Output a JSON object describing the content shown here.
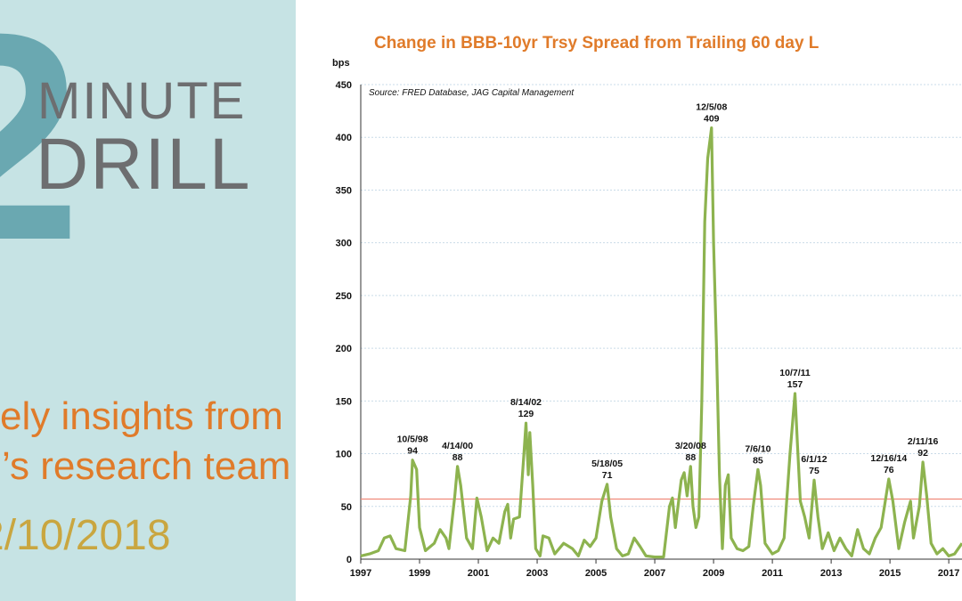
{
  "banner": {
    "digit": "2",
    "word1": "MINUTE",
    "word2": "DRILL",
    "line1": "ely insights from",
    "line2": "’s research team",
    "date": "2/10/2018"
  },
  "chart_data": {
    "type": "line",
    "title": "Change in BBB-10yr Trsy Spread from Trailing 60 day L",
    "y_label": "bps",
    "source": "Source: FRED Database, JAG Capital Management",
    "xlim": [
      1997,
      2017.45
    ],
    "xticks": [
      1997,
      1999,
      2001,
      2003,
      2005,
      2007,
      2009,
      2011,
      2013,
      2015,
      2017
    ],
    "ylim": [
      0,
      450
    ],
    "yticks": [
      0,
      50,
      100,
      150,
      200,
      250,
      300,
      350,
      400,
      450
    ],
    "grid": true,
    "reference_line": 57,
    "reference_color": "#f08a7a",
    "x": [
      1997.0,
      1997.3,
      1997.6,
      1997.8,
      1998.0,
      1998.2,
      1998.5,
      1998.7,
      1998.76,
      1998.9,
      1999.0,
      1999.2,
      1999.5,
      1999.7,
      1999.9,
      2000.0,
      2000.2,
      2000.29,
      2000.4,
      2000.6,
      2000.8,
      2000.95,
      2001.1,
      2001.3,
      2001.5,
      2001.7,
      2001.9,
      2002.0,
      2002.1,
      2002.2,
      2002.4,
      2002.55,
      2002.62,
      2002.7,
      2002.75,
      2002.85,
      2002.95,
      2003.1,
      2003.2,
      2003.4,
      2003.6,
      2003.9,
      2004.2,
      2004.4,
      2004.6,
      2004.8,
      2005.0,
      2005.2,
      2005.38,
      2005.5,
      2005.7,
      2005.9,
      2006.1,
      2006.3,
      2006.5,
      2006.7,
      2007.0,
      2007.3,
      2007.5,
      2007.6,
      2007.7,
      2007.9,
      2008.0,
      2008.1,
      2008.22,
      2008.3,
      2008.4,
      2008.5,
      2008.6,
      2008.7,
      2008.8,
      2008.93,
      2009.0,
      2009.1,
      2009.2,
      2009.3,
      2009.4,
      2009.5,
      2009.6,
      2009.8,
      2010.0,
      2010.2,
      2010.35,
      2010.51,
      2010.6,
      2010.75,
      2011.0,
      2011.2,
      2011.4,
      2011.6,
      2011.77,
      2011.85,
      2011.95,
      2012.1,
      2012.25,
      2012.42,
      2012.55,
      2012.7,
      2012.9,
      2013.1,
      2013.3,
      2013.5,
      2013.7,
      2013.9,
      2014.1,
      2014.3,
      2014.5,
      2014.7,
      2014.96,
      2015.1,
      2015.3,
      2015.5,
      2015.7,
      2015.8,
      2016.0,
      2016.12,
      2016.25,
      2016.4,
      2016.6,
      2016.8,
      2017.0,
      2017.2,
      2017.45
    ],
    "series": [
      {
        "name": "Change",
        "color": "#8db34f",
        "values": [
          3,
          5,
          8,
          20,
          22,
          10,
          8,
          60,
          94,
          85,
          30,
          8,
          15,
          28,
          20,
          10,
          60,
          88,
          70,
          20,
          10,
          58,
          40,
          8,
          20,
          15,
          45,
          52,
          20,
          38,
          40,
          100,
          129,
          80,
          120,
          70,
          10,
          3,
          22,
          20,
          5,
          15,
          10,
          3,
          18,
          12,
          20,
          55,
          71,
          40,
          10,
          3,
          5,
          20,
          12,
          3,
          2,
          2,
          50,
          58,
          30,
          75,
          82,
          60,
          88,
          50,
          30,
          40,
          150,
          320,
          380,
          409,
          300,
          200,
          80,
          10,
          70,
          80,
          20,
          10,
          8,
          12,
          50,
          85,
          70,
          15,
          5,
          8,
          20,
          100,
          157,
          110,
          55,
          40,
          20,
          75,
          40,
          10,
          25,
          8,
          20,
          10,
          3,
          28,
          10,
          5,
          20,
          30,
          76,
          55,
          10,
          35,
          55,
          20,
          50,
          92,
          60,
          15,
          5,
          10,
          3,
          5,
          15
        ]
      }
    ],
    "annotations": [
      {
        "label": "10/5/98",
        "value": 94,
        "x": 1998.76
      },
      {
        "label": "4/14/00",
        "value": 88,
        "x": 2000.29
      },
      {
        "label": "8/14/02",
        "value": 129,
        "x": 2002.62
      },
      {
        "label": "5/18/05",
        "value": 71,
        "x": 2005.38
      },
      {
        "label": "3/20/08",
        "value": 88,
        "x": 2008.22
      },
      {
        "label": "12/5/08",
        "value": 409,
        "x": 2008.93
      },
      {
        "label": "7/6/10",
        "value": 85,
        "x": 2010.51
      },
      {
        "label": "10/7/11",
        "value": 157,
        "x": 2011.77
      },
      {
        "label": "6/1/12",
        "value": 75,
        "x": 2012.42
      },
      {
        "label": "12/16/14",
        "value": 76,
        "x": 2014.96
      },
      {
        "label": "2/11/16",
        "value": 92,
        "x": 2016.12
      }
    ]
  }
}
